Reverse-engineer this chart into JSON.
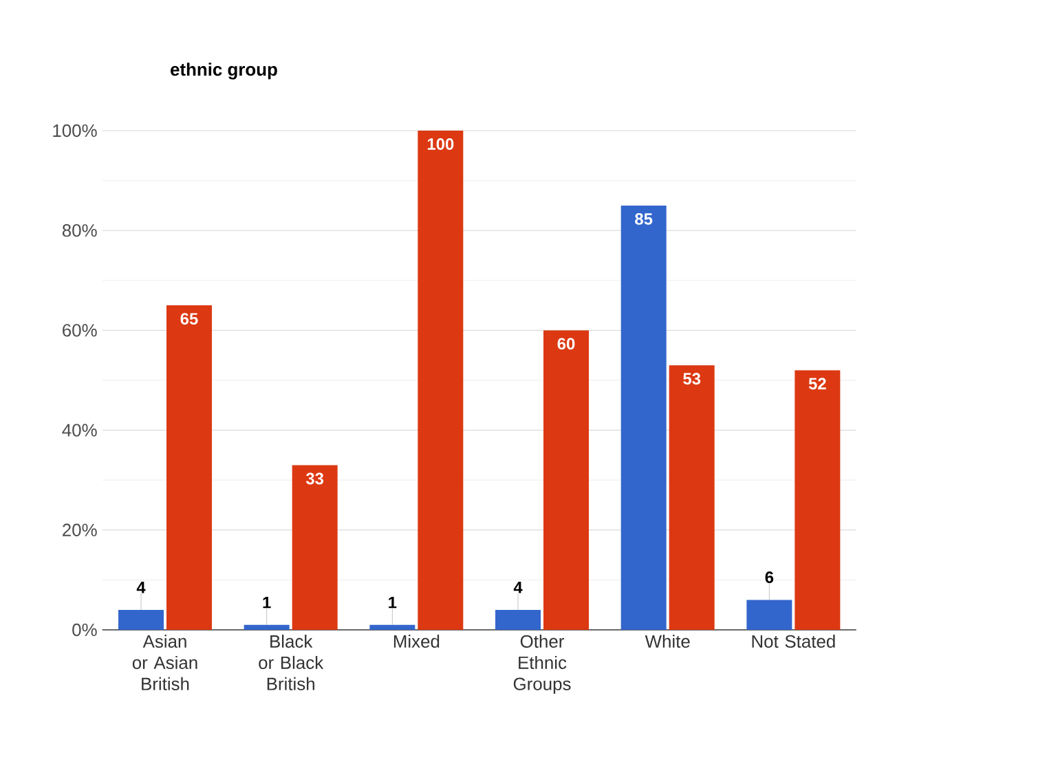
{
  "chart_data": {
    "type": "bar",
    "title": "ethnic group",
    "categories": [
      "Asian or Asian British",
      "Black or Black British",
      "Mixed",
      "Other Ethnic Groups",
      "White",
      "Not Stated"
    ],
    "series": [
      {
        "color": "#3366cc",
        "values": [
          4,
          1,
          1,
          4,
          85,
          6
        ]
      },
      {
        "color": "#dc3912",
        "values": [
          65,
          33,
          100,
          60,
          53,
          52
        ]
      }
    ],
    "ylim": [
      0,
      100
    ],
    "yticks": [
      {
        "value": 0,
        "label": "0%"
      },
      {
        "value": 10,
        "label": null
      },
      {
        "value": 20,
        "label": "20%"
      },
      {
        "value": 30,
        "label": null
      },
      {
        "value": 40,
        "label": "40%"
      },
      {
        "value": 50,
        "label": null
      },
      {
        "value": 60,
        "label": "60%"
      },
      {
        "value": 70,
        "label": null
      },
      {
        "value": 80,
        "label": "80%"
      },
      {
        "value": 90,
        "label": null
      },
      {
        "value": 100,
        "label": "100%"
      }
    ],
    "grid": "y",
    "data_labels": true
  }
}
